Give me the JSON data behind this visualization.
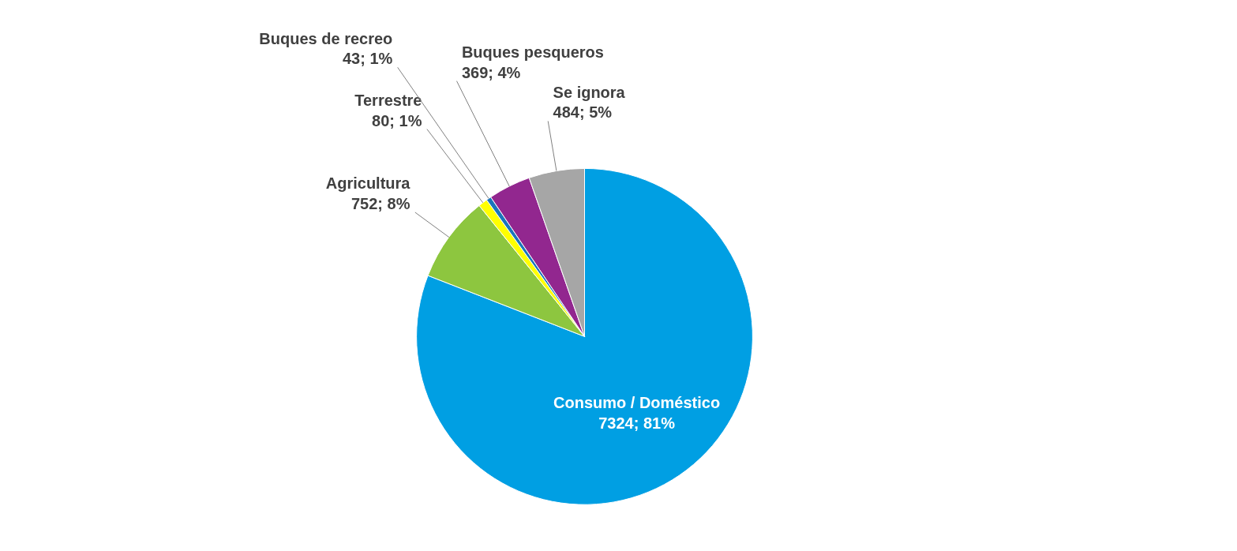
{
  "chart_data": {
    "type": "pie",
    "categories": [
      "Consumo / Doméstico",
      "Agricultura",
      "Terrestre",
      "Buques de recreo",
      "Buques pesqueros",
      "Se ignora"
    ],
    "values": [
      7324,
      752,
      80,
      43,
      369,
      484
    ],
    "colors": [
      "#009fe3",
      "#8dc63f",
      "#ffff00",
      "#1b75bb",
      "#92278f",
      "#a6a6a6"
    ],
    "value_labels": [
      "7324; 81%",
      "752; 8%",
      "80; 1%",
      "43; 1%",
      "369; 4%",
      "484; 5%"
    ]
  }
}
